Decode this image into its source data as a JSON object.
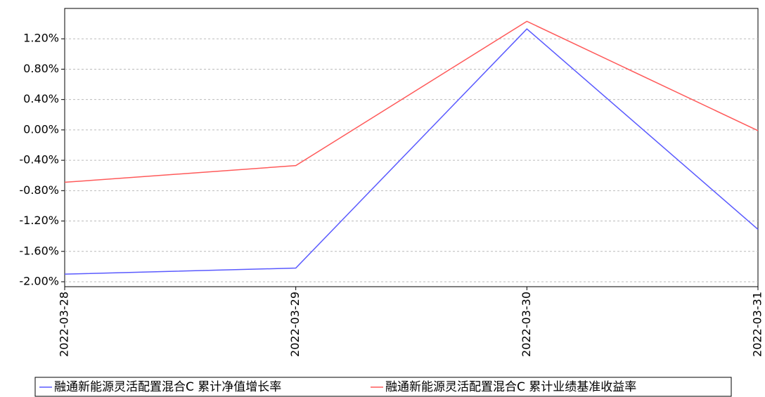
{
  "chart_data": {
    "type": "line",
    "categories": [
      "2022-03-28",
      "2022-03-29",
      "2022-03-30",
      "2022-03-31"
    ],
    "series": [
      {
        "name": "融通新能源灵活配置混合C 累计净值增长率",
        "color": "#5a5aff",
        "values": [
          -1.9,
          -1.82,
          1.33,
          -1.31
        ]
      },
      {
        "name": "融通新能源灵活配置混合C 累计业绩基准收益率",
        "color": "#ff5a5a",
        "values": [
          -0.69,
          -0.47,
          1.43,
          -0.01
        ]
      }
    ],
    "ylim": [
      -2.065,
      1.6
    ],
    "yticks": [
      {
        "value": -2.0,
        "label": "-2.00%"
      },
      {
        "value": -1.6,
        "label": "-1.60%"
      },
      {
        "value": -1.2,
        "label": "-1.20%"
      },
      {
        "value": -0.8,
        "label": "-0.80%"
      },
      {
        "value": -0.4,
        "label": "-0.40%"
      },
      {
        "value": 0.0,
        "label": "0.00%"
      },
      {
        "value": 0.4,
        "label": "0.40%"
      },
      {
        "value": 0.8,
        "label": "0.80%"
      },
      {
        "value": 1.2,
        "label": "1.20%"
      }
    ],
    "grid": true
  }
}
